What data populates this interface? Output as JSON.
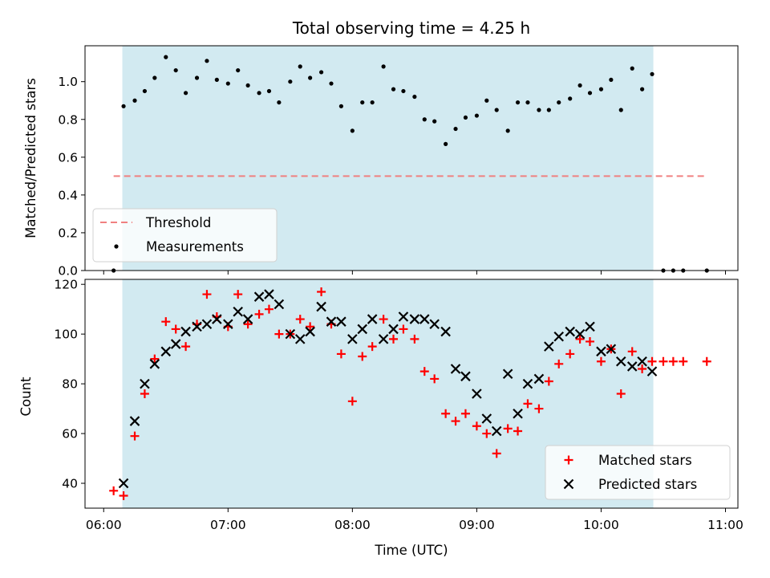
{
  "figure": {
    "title": "Total observing time = 4.25 h",
    "xlabel": "Time (UTC)",
    "xticks": [
      {
        "t": 6.0,
        "label": "06:00"
      },
      {
        "t": 7.0,
        "label": "07:00"
      },
      {
        "t": 8.0,
        "label": "08:00"
      },
      {
        "t": 9.0,
        "label": "09:00"
      },
      {
        "t": 10.0,
        "label": "10:00"
      },
      {
        "t": 11.0,
        "label": "11:00"
      }
    ],
    "xlim_hours": [
      5.85,
      11.1
    ],
    "observing_window_hours": [
      6.15,
      10.42
    ],
    "colors": {
      "window": "#add8e6",
      "threshold": "#f08080",
      "measurements": "#000000",
      "matched": "#ff0000",
      "predicted": "#000000"
    }
  },
  "chart_data": [
    {
      "type": "scatter",
      "ylabel": "Matched/Predicted stars",
      "ylim": [
        0,
        1.19
      ],
      "yticks": [
        "0.0",
        "0.2",
        "0.4",
        "0.6",
        "0.8",
        "1.0"
      ],
      "legend": {
        "position": "lower left",
        "threshold_label": "Threshold",
        "measurements_label": "Measurements"
      },
      "threshold": {
        "value": 0.5,
        "x_range": [
          6.08,
          10.85
        ]
      },
      "measurements": [
        [
          6.08,
          0.0
        ],
        [
          6.16,
          0.87
        ],
        [
          6.25,
          0.9
        ],
        [
          6.33,
          0.95
        ],
        [
          6.41,
          1.02
        ],
        [
          6.5,
          1.13
        ],
        [
          6.58,
          1.06
        ],
        [
          6.66,
          0.94
        ],
        [
          6.75,
          1.02
        ],
        [
          6.83,
          1.11
        ],
        [
          6.91,
          1.01
        ],
        [
          7.0,
          0.99
        ],
        [
          7.08,
          1.06
        ],
        [
          7.16,
          0.98
        ],
        [
          7.25,
          0.94
        ],
        [
          7.33,
          0.95
        ],
        [
          7.41,
          0.89
        ],
        [
          7.5,
          1.0
        ],
        [
          7.58,
          1.08
        ],
        [
          7.66,
          1.02
        ],
        [
          7.75,
          1.05
        ],
        [
          7.83,
          0.99
        ],
        [
          7.91,
          0.87
        ],
        [
          8.0,
          0.74
        ],
        [
          8.08,
          0.89
        ],
        [
          8.16,
          0.89
        ],
        [
          8.25,
          1.08
        ],
        [
          8.33,
          0.96
        ],
        [
          8.41,
          0.95
        ],
        [
          8.5,
          0.92
        ],
        [
          8.58,
          0.8
        ],
        [
          8.66,
          0.79
        ],
        [
          8.75,
          0.67
        ],
        [
          8.83,
          0.75
        ],
        [
          8.91,
          0.81
        ],
        [
          9.0,
          0.82
        ],
        [
          9.08,
          0.9
        ],
        [
          9.16,
          0.85
        ],
        [
          9.25,
          0.74
        ],
        [
          9.33,
          0.89
        ],
        [
          9.41,
          0.89
        ],
        [
          9.5,
          0.85
        ],
        [
          9.58,
          0.85
        ],
        [
          9.66,
          0.89
        ],
        [
          9.75,
          0.91
        ],
        [
          9.83,
          0.98
        ],
        [
          9.91,
          0.94
        ],
        [
          10.0,
          0.96
        ],
        [
          10.08,
          1.01
        ],
        [
          10.16,
          0.85
        ],
        [
          10.25,
          1.07
        ],
        [
          10.33,
          0.96
        ],
        [
          10.41,
          1.04
        ],
        [
          10.5,
          0.0
        ],
        [
          10.58,
          0.0
        ],
        [
          10.66,
          0.0
        ],
        [
          10.85,
          0.0
        ]
      ]
    },
    {
      "type": "scatter",
      "ylabel": "Count",
      "ylim": [
        30,
        122
      ],
      "yticks": [
        "40",
        "60",
        "80",
        "100",
        "120"
      ],
      "legend": {
        "position": "lower right"
      },
      "series": [
        {
          "name": "Matched stars",
          "marker": "+",
          "points": [
            [
              6.08,
              37
            ],
            [
              6.16,
              35
            ],
            [
              6.25,
              59
            ],
            [
              6.33,
              76
            ],
            [
              6.41,
              90
            ],
            [
              6.5,
              105
            ],
            [
              6.58,
              102
            ],
            [
              6.66,
              95
            ],
            [
              6.75,
              104
            ],
            [
              6.83,
              116
            ],
            [
              6.91,
              107
            ],
            [
              7.0,
              103
            ],
            [
              7.08,
              116
            ],
            [
              7.16,
              104
            ],
            [
              7.25,
              108
            ],
            [
              7.33,
              110
            ],
            [
              7.41,
              100
            ],
            [
              7.5,
              100
            ],
            [
              7.58,
              106
            ],
            [
              7.66,
              103
            ],
            [
              7.75,
              117
            ],
            [
              7.83,
              104
            ],
            [
              7.91,
              92
            ],
            [
              8.0,
              73
            ],
            [
              8.08,
              91
            ],
            [
              8.16,
              95
            ],
            [
              8.25,
              106
            ],
            [
              8.33,
              98
            ],
            [
              8.41,
              102
            ],
            [
              8.5,
              98
            ],
            [
              8.58,
              85
            ],
            [
              8.66,
              82
            ],
            [
              8.75,
              68
            ],
            [
              8.83,
              65
            ],
            [
              8.91,
              68
            ],
            [
              9.0,
              63
            ],
            [
              9.08,
              60
            ],
            [
              9.16,
              52
            ],
            [
              9.25,
              62
            ],
            [
              9.33,
              61
            ],
            [
              9.41,
              72
            ],
            [
              9.5,
              70
            ],
            [
              9.58,
              81
            ],
            [
              9.66,
              88
            ],
            [
              9.75,
              92
            ],
            [
              9.83,
              98
            ],
            [
              9.91,
              97
            ],
            [
              10.0,
              89
            ],
            [
              10.08,
              94
            ],
            [
              10.16,
              76
            ],
            [
              10.25,
              93
            ],
            [
              10.33,
              86
            ],
            [
              10.41,
              89
            ],
            [
              10.5,
              89
            ],
            [
              10.58,
              89
            ],
            [
              10.66,
              89
            ],
            [
              10.85,
              89
            ]
          ]
        },
        {
          "name": "Predicted stars",
          "marker": "x",
          "points": [
            [
              6.16,
              40
            ],
            [
              6.25,
              65
            ],
            [
              6.33,
              80
            ],
            [
              6.41,
              88
            ],
            [
              6.5,
              93
            ],
            [
              6.58,
              96
            ],
            [
              6.66,
              101
            ],
            [
              6.75,
              103
            ],
            [
              6.83,
              104
            ],
            [
              6.91,
              106
            ],
            [
              7.0,
              104
            ],
            [
              7.08,
              109
            ],
            [
              7.16,
              106
            ],
            [
              7.25,
              115
            ],
            [
              7.33,
              116
            ],
            [
              7.41,
              112
            ],
            [
              7.5,
              100
            ],
            [
              7.58,
              98
            ],
            [
              7.66,
              101
            ],
            [
              7.75,
              111
            ],
            [
              7.83,
              105
            ],
            [
              7.91,
              105
            ],
            [
              8.0,
              98
            ],
            [
              8.08,
              102
            ],
            [
              8.16,
              106
            ],
            [
              8.25,
              98
            ],
            [
              8.33,
              102
            ],
            [
              8.41,
              107
            ],
            [
              8.5,
              106
            ],
            [
              8.58,
              106
            ],
            [
              8.66,
              104
            ],
            [
              8.75,
              101
            ],
            [
              8.83,
              86
            ],
            [
              8.91,
              83
            ],
            [
              9.0,
              76
            ],
            [
              9.08,
              66
            ],
            [
              9.16,
              61
            ],
            [
              9.25,
              84
            ],
            [
              9.33,
              68
            ],
            [
              9.41,
              80
            ],
            [
              9.5,
              82
            ],
            [
              9.58,
              95
            ],
            [
              9.66,
              99
            ],
            [
              9.75,
              101
            ],
            [
              9.83,
              100
            ],
            [
              9.91,
              103
            ],
            [
              10.0,
              93
            ],
            [
              10.08,
              94
            ],
            [
              10.16,
              89
            ],
            [
              10.25,
              87
            ],
            [
              10.33,
              89
            ],
            [
              10.41,
              85
            ]
          ]
        }
      ]
    }
  ]
}
